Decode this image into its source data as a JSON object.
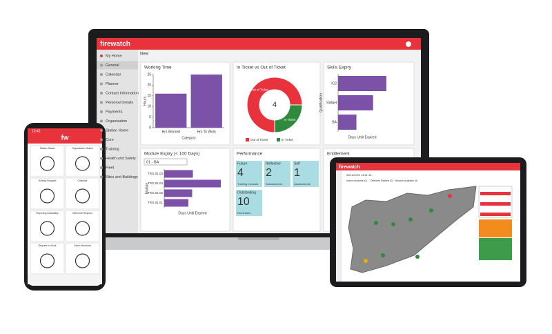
{
  "laptop": {
    "brand": "firewatch",
    "toolbar": "New",
    "sidebar": [
      "My Home",
      "General",
      "Calendar",
      "Planner",
      "Contact Information",
      "Personal Details",
      "Payments",
      "Organisation",
      "Station Home",
      "Core",
      "Training",
      "Health and Safety",
      "Fleet",
      "Sites and Buildings"
    ],
    "working_time": {
      "title": "Working Time",
      "y_label": "Hours",
      "x_label": "Category",
      "categories": [
        "Hrs Worked",
        "Hrs To Work"
      ],
      "values": [
        16,
        25
      ],
      "ylim": [
        0,
        25
      ],
      "yticks": [
        0,
        5,
        10,
        15,
        20,
        25
      ],
      "color": "#7b52a8"
    },
    "ticket": {
      "title": "In Ticket vs Out of Ticket",
      "total": 4,
      "slices": [
        {
          "name": "Out of Ticket",
          "value": 3,
          "color": "#e8323c"
        },
        {
          "name": "In Ticket",
          "value": 1,
          "color": "#2e8b3e"
        }
      ]
    },
    "skills": {
      "title": "Skills Expiry",
      "y_label": "Qualification",
      "x_label": "Days Until Expired",
      "categories": [
        "IC2",
        "SWAH",
        "BA"
      ],
      "values": [
        58,
        42,
        22
      ],
      "color": "#7b52a8"
    },
    "module": {
      "title": "Module Expiry (< 100 Days)",
      "filter": "01 - BA",
      "y_label": "Module",
      "x_label": "Days Until Expired",
      "categories": [
        "TRG.01.03",
        "TRG.01.04",
        "TRG.01.02",
        "TRG.01.01"
      ],
      "values": [
        38,
        75,
        37,
        32
      ],
      "color": "#7b52a8"
    },
    "performance": {
      "title": "Performance",
      "tiles": [
        {
          "label": "Future",
          "value": 4,
          "caption": "Training Courses"
        },
        {
          "label": "Reflective",
          "value": 2,
          "caption": "Assessments"
        },
        {
          "label": "Self",
          "value": 1,
          "caption": "Assessments"
        },
        {
          "label": "Outstanding",
          "value": 10,
          "caption": "Reminders"
        }
      ]
    },
    "entitlement": {
      "title": "Entitlement"
    }
  },
  "phone": {
    "time": "10:42",
    "logo": "fw",
    "tiles": [
      "Station Status",
      "Organisation Status",
      "Holiday Request",
      "Calendar",
      "Reporting Availability",
      "Welcome Request",
      "Request to Work",
      "Catch Absences"
    ]
  },
  "tablet": {
    "brand": "firewatch",
    "date": "06/10/2022 11:51:13",
    "tabs": [
      "Active Incidents (0)",
      "Deficient Stations (0)",
      "Vehicles Available (0)"
    ]
  }
}
